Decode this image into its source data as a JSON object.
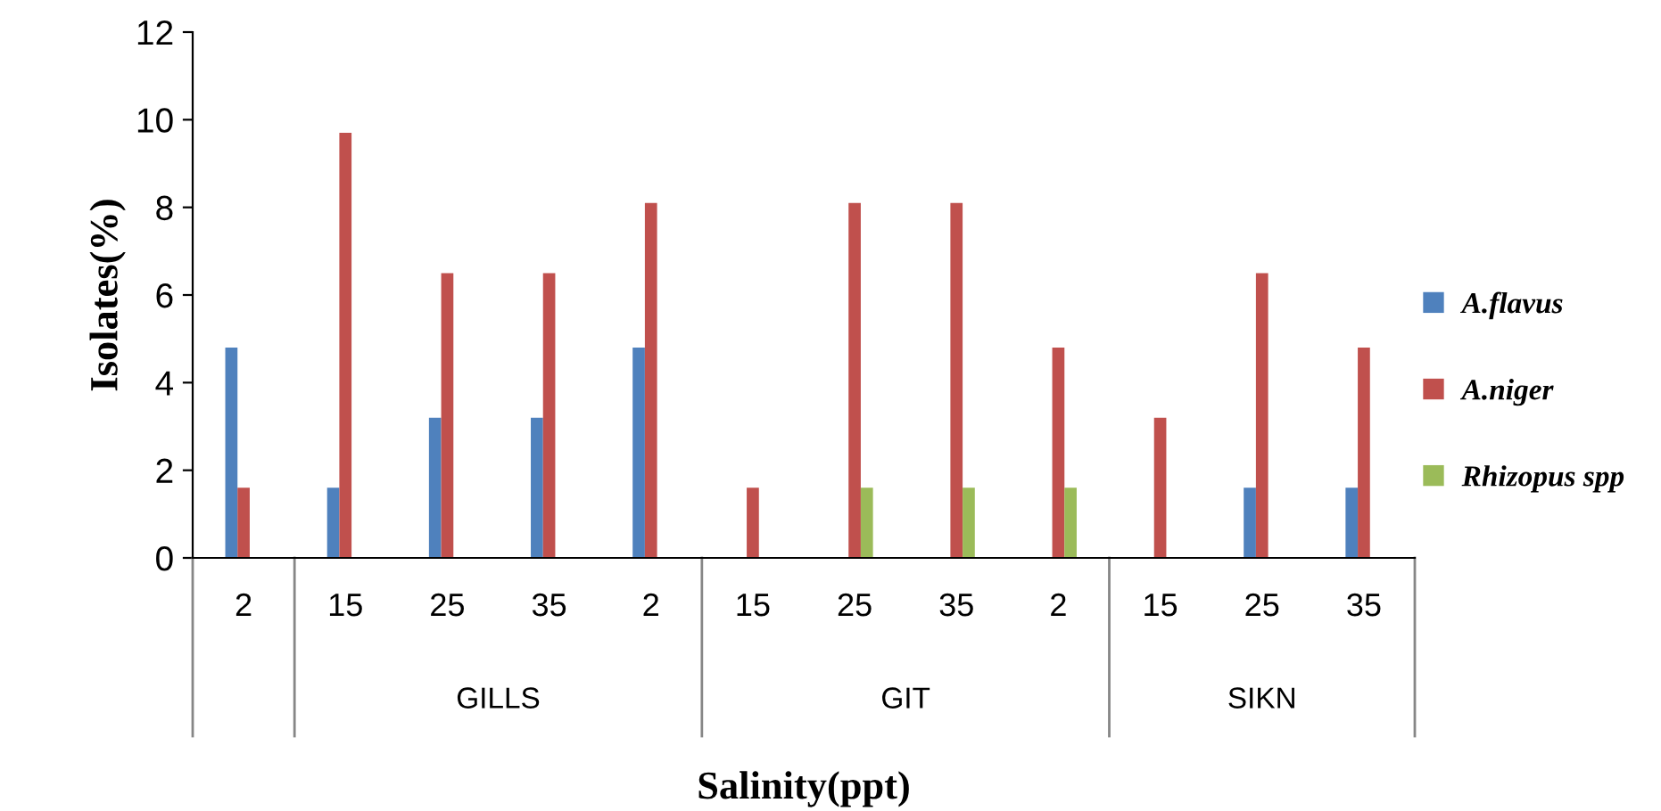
{
  "chart_data": {
    "type": "bar",
    "categories": [
      "2",
      "15",
      "25",
      "35",
      "2",
      "15",
      "25",
      "35",
      "2",
      "15",
      "25",
      "35"
    ],
    "series": [
      {
        "name": "A.flavus",
        "color": "#4f81bd",
        "values": [
          4.8,
          1.6,
          3.2,
          3.2,
          4.8,
          0,
          0,
          0,
          0,
          0,
          1.6,
          1.6
        ]
      },
      {
        "name": "A.niger",
        "color": "#c0504d",
        "values": [
          1.6,
          9.7,
          6.5,
          6.5,
          8.1,
          1.6,
          8.1,
          8.1,
          4.8,
          3.2,
          6.5,
          4.8
        ]
      },
      {
        "name": "Rhizopus spp",
        "color": "#9bbb59",
        "values": [
          0,
          0,
          0,
          0,
          0,
          0,
          1.6,
          1.6,
          1.6,
          0,
          0,
          0
        ]
      }
    ],
    "annotations": [
      "GILLS",
      "GIT",
      "SIKN"
    ],
    "xlabel": "Salinity(ppt)",
    "ylabel": "Isolates(%)",
    "ylim": [
      0,
      12
    ],
    "yticks": [
      0,
      2,
      4,
      6,
      8,
      10,
      12
    ],
    "grid": false,
    "legend": "right"
  }
}
